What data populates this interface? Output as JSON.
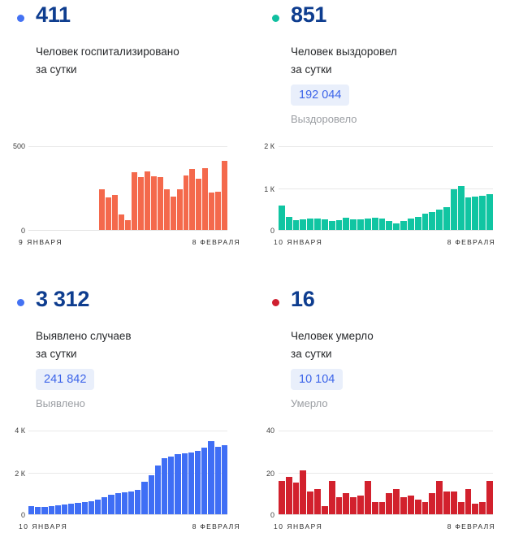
{
  "panels": [
    {
      "id": "hospitalized",
      "dot_color": "#4472f3",
      "value": "411",
      "subtitle_line1": "Человек госпитализировано",
      "subtitle_line2": "за сутки"
    },
    {
      "id": "recovered",
      "dot_color": "#10bfa0",
      "value": "851",
      "subtitle_line1": "Человек выздоровел",
      "subtitle_line2": "за сутки",
      "badge_value": "192 044",
      "badge_label": "Выздоровело"
    },
    {
      "id": "cases",
      "dot_color": "#4472f3",
      "value": "3 312",
      "subtitle_line1": "Выявлено случаев",
      "subtitle_line2": "за сутки",
      "badge_value": "241 842",
      "badge_label": "Выявлено"
    },
    {
      "id": "deaths",
      "dot_color": "#cf2030",
      "value": "16",
      "subtitle_line1": "Человек умерло",
      "subtitle_line2": "за сутки",
      "badge_value": "10 104",
      "badge_label": "Умерло"
    }
  ],
  "chart_data": [
    {
      "type": "bar",
      "title": "Человек госпитализировано за сутки",
      "color": "#f4694c",
      "ylim": [
        0,
        500
      ],
      "tick_top": "500",
      "tick_zero": "0",
      "x_left": "9 ЯНВАРЯ",
      "x_right": "8 ФЕВРАЛЯ",
      "legend": "none",
      "grid": "horizontal",
      "values": [
        0,
        0,
        0,
        0,
        0,
        0,
        0,
        0,
        0,
        0,
        0,
        241,
        193,
        210,
        92,
        57,
        346,
        314,
        351,
        319,
        314,
        241,
        200,
        241,
        327,
        362,
        306,
        367,
        225,
        230,
        411
      ]
    },
    {
      "type": "bar",
      "title": "Человек выздоровел за сутки",
      "color": "#10c5a2",
      "ylim": [
        0,
        2000
      ],
      "tick_top": "2 К",
      "tick_mid": "1 К",
      "tick_zero": "0",
      "x_left": "10 ЯНВАРЯ",
      "x_right": "8 ФЕВРАЛЯ",
      "legend": "none",
      "grid": "horizontal",
      "values": [
        590,
        310,
        235,
        255,
        270,
        275,
        260,
        205,
        230,
        300,
        250,
        255,
        270,
        290,
        280,
        215,
        165,
        205,
        270,
        320,
        380,
        430,
        490,
        550,
        980,
        1040,
        785,
        800,
        810,
        851
      ]
    },
    {
      "type": "bar",
      "title": "Выявлено случаев за сутки",
      "color": "#3f6ef5",
      "ylim": [
        0,
        4000
      ],
      "tick_top": "4 К",
      "tick_mid": "2 К",
      "tick_zero": "0",
      "x_left": "10 ЯНВАРЯ",
      "x_right": "8 ФЕВРАЛЯ",
      "legend": "none",
      "grid": "horizontal",
      "values": [
        380,
        345,
        355,
        370,
        420,
        470,
        510,
        545,
        570,
        635,
        700,
        825,
        915,
        1015,
        1055,
        1105,
        1170,
        1550,
        1880,
        2350,
        2670,
        2770,
        2860,
        2930,
        2960,
        3040,
        3190,
        3480,
        3225,
        3312
      ]
    },
    {
      "type": "bar",
      "title": "Человек умерло за сутки",
      "color": "#d2212d",
      "ylim": [
        0,
        40
      ],
      "tick_top": "40",
      "tick_mid": "20",
      "tick_zero": "0",
      "x_left": "10 ЯНВАРЯ",
      "x_right": "8 ФЕВРАЛЯ",
      "legend": "none",
      "grid": "horizontal",
      "values": [
        16,
        18,
        15,
        21,
        11,
        12,
        4,
        16,
        8,
        10,
        8,
        9,
        16,
        6,
        6,
        10,
        12,
        8,
        9,
        7,
        6,
        10,
        16,
        11,
        11,
        6,
        12,
        5,
        6,
        16
      ]
    }
  ]
}
